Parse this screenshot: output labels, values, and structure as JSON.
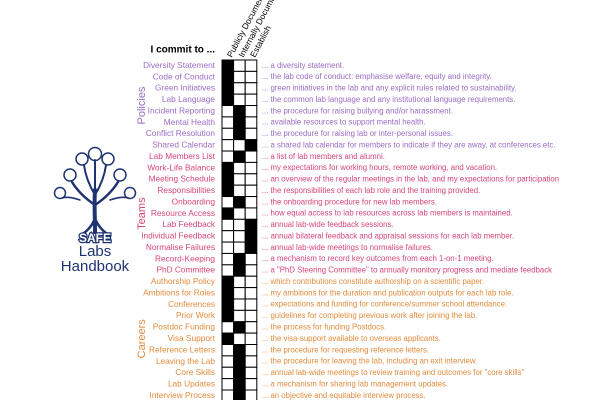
{
  "header": {
    "commit": "I commit to ...",
    "columns": [
      "Publicly Document",
      "Internally Document",
      "Establish"
    ]
  },
  "logo": {
    "badge": "SAFE",
    "line1": "Labs",
    "line2": "Handbook"
  },
  "groups": [
    {
      "name": "Policies",
      "color": "#9b6cc4",
      "items": [
        {
          "label": "Diversity Statement",
          "description": "... a diversity statement.",
          "cell": 0
        },
        {
          "label": "Code of Conduct",
          "description": "... the lab code of conduct: emphasise welfare, equity and integrity.",
          "cell": 0
        },
        {
          "label": "Green Initiatives",
          "description": "... green initiatives in the lab and any explicit rules related to sustainability.",
          "cell": 0
        },
        {
          "label": "Lab Language",
          "description": "... the common lab language and any institutional language requirements.",
          "cell": 0
        },
        {
          "label": "Incident Reporting",
          "description": "... the procedure for raising bullying and/or harassment.",
          "cell": 1
        },
        {
          "label": "Mental Health",
          "description": "... available resources to support mental health.",
          "cell": 1
        },
        {
          "label": "Conflict Resolution",
          "description": "... the procedure for raising lab or inter-personal issues.",
          "cell": 1
        },
        {
          "label": "Shared Calendar",
          "description": "... a shared lab calendar for members to indicate if they are away, at conferences etc.",
          "cell": 2
        }
      ]
    },
    {
      "name": "Teams",
      "color": "#d6457a",
      "items": [
        {
          "label": "Lab Members List",
          "description": "... a list of lab members and alumni.",
          "cell": 1
        },
        {
          "label": "Work-Life Balance",
          "description": "... my expectations for working hours, remote working, and vacation.",
          "cell": 0
        },
        {
          "label": "Meeting Schedule",
          "description": "... an overview of the regular meetings in the lab, and my expectations for participation",
          "cell": 0
        },
        {
          "label": "Responsibilities",
          "description": "... the responsibilities of each lab role and the training provided.",
          "cell": 0
        },
        {
          "label": "Onboarding",
          "description": "... the onboarding procedure for new lab members.",
          "cell": 1
        },
        {
          "label": "Resource Access",
          "description": "... how equal access to lab resources across lab members is maintained.",
          "cell": 0
        },
        {
          "label": "Lab Feedback",
          "description": "... annual lab-wide feedback sessions.",
          "cell": 2
        },
        {
          "label": "Individual Feedback",
          "description": "... annual bilateral feedback and appraisal sessions for each lab member.",
          "cell": 2
        },
        {
          "label": "Normalise Failures",
          "description": "... annual lab-wide meetings to normalise failures.",
          "cell": 2
        },
        {
          "label": "Record-Keeping",
          "description": "... a mechanism to record key outcomes from each 1-on-1 meeting.",
          "cell": 1
        },
        {
          "label": "PhD Committee",
          "description": "... a \"PhD Steering Committee\" to annually monitory progress and mediate feedback",
          "cell": 1
        }
      ]
    },
    {
      "name": "Careers",
      "color": "#e38b3c",
      "items": [
        {
          "label": "Authorship Policy",
          "description": "... which contributions constitute authorship on a scientific paper.",
          "cell": 0
        },
        {
          "label": "Ambitions for Roles",
          "description": "... my ambitions for the duration and publication outputs for each lab role.",
          "cell": 0
        },
        {
          "label": "Conferences",
          "description": "... expectations and funding for conference/summer school attendance.",
          "cell": 0
        },
        {
          "label": "Prior Work",
          "description": "... guidelines for completing previous work after joining the lab.",
          "cell": 0
        },
        {
          "label": "Postdoc Funding",
          "description": "... the process for funding Postdocs.",
          "cell": 1
        },
        {
          "label": "Visa Support",
          "description": "... the visa-support available to overseas applicants.",
          "cell": 0
        },
        {
          "label": "Reference Letters",
          "description": "... the procedure for requesting reference letters.",
          "cell": 1
        },
        {
          "label": "Leaving the Lab",
          "description": "... the procedure for leaving the lab, including an exit interview.",
          "cell": 1
        },
        {
          "label": "Core Skills",
          "description": "... annual lab-wide meetings to review training and outcomes for \"core skills\"",
          "cell": 1
        },
        {
          "label": "Lab Updates",
          "description": "... a mechanism for sharing lab management updates.",
          "cell": 1
        },
        {
          "label": "Interview Process",
          "description": "... an objective and equitable interview process.",
          "cell": 1
        }
      ]
    }
  ]
}
